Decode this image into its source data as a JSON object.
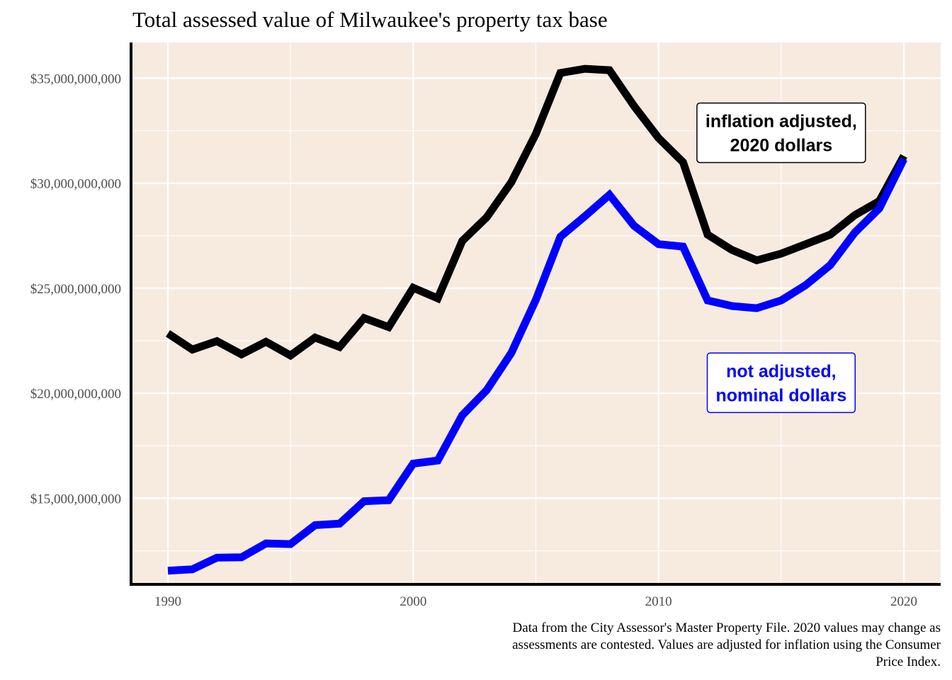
{
  "chart_data": {
    "type": "line",
    "title": "Total assessed value of Milwaukee's property tax base",
    "xlabel": "",
    "ylabel": "",
    "xlim": [
      1988.5,
      2021.5
    ],
    "ylim": [
      10900000000,
      36700000000
    ],
    "x_ticks": [
      1990,
      2000,
      2010,
      2020
    ],
    "x_tick_labels": [
      "1990",
      "2000",
      "2010",
      "2020"
    ],
    "x_minor_ticks": [
      1995,
      2005,
      2015
    ],
    "y_ticks": [
      15000000000,
      20000000000,
      25000000000,
      30000000000,
      35000000000
    ],
    "y_tick_labels": [
      "$15,000,000,000",
      "$20,000,000,000",
      "$25,000,000,000",
      "$30,000,000,000",
      "$35,000,000,000"
    ],
    "y_minor_ticks": [
      12500000000,
      17500000000,
      22500000000,
      27500000000,
      32500000000
    ],
    "grid": true,
    "background": "#f7ebe0",
    "x": [
      1990,
      1991,
      1992,
      1993,
      1994,
      1995,
      1996,
      1997,
      1998,
      1999,
      2000,
      2001,
      2002,
      2003,
      2004,
      2005,
      2006,
      2007,
      2008,
      2009,
      2010,
      2011,
      2012,
      2013,
      2014,
      2015,
      2016,
      2017,
      2018,
      2019,
      2020
    ],
    "series": [
      {
        "color": "#000000",
        "values": [
          22850000000,
          22080000000,
          22480000000,
          21850000000,
          22450000000,
          21800000000,
          22650000000,
          22200000000,
          23580000000,
          23150000000,
          25020000000,
          24520000000,
          27250000000,
          28380000000,
          30050000000,
          32350000000,
          35250000000,
          35450000000,
          35380000000,
          33680000000,
          32150000000,
          31000000000,
          27550000000,
          26820000000,
          26330000000,
          26650000000,
          27100000000,
          27550000000,
          28480000000,
          29150000000,
          31300000000
        ]
      },
      {
        "color": "#0000ff",
        "values": [
          11550000000,
          11620000000,
          12170000000,
          12190000000,
          12850000000,
          12820000000,
          13720000000,
          13790000000,
          14860000000,
          14910000000,
          16650000000,
          16800000000,
          18950000000,
          20150000000,
          21920000000,
          24450000000,
          27450000000,
          28430000000,
          29450000000,
          27980000000,
          27100000000,
          26980000000,
          24420000000,
          24150000000,
          24050000000,
          24420000000,
          25150000000,
          26100000000,
          27650000000,
          28800000000,
          31150000000
        ]
      }
    ],
    "annotations": [
      {
        "text_lines": [
          "inflation adjusted,",
          "2020 dollars"
        ],
        "color": "#000000",
        "x": 2015,
        "y": 32400000000
      },
      {
        "text_lines": [
          "not adjusted,",
          "nominal dollars"
        ],
        "color": "#0000ff",
        "x": 2015,
        "y": 20500000000
      }
    ],
    "caption": [
      "Data from the City Assessor's Master Property File. 2020 values may change as",
      "assessments are contested. Values are adjusted for inflation using the Consumer",
      "Price Index."
    ]
  }
}
